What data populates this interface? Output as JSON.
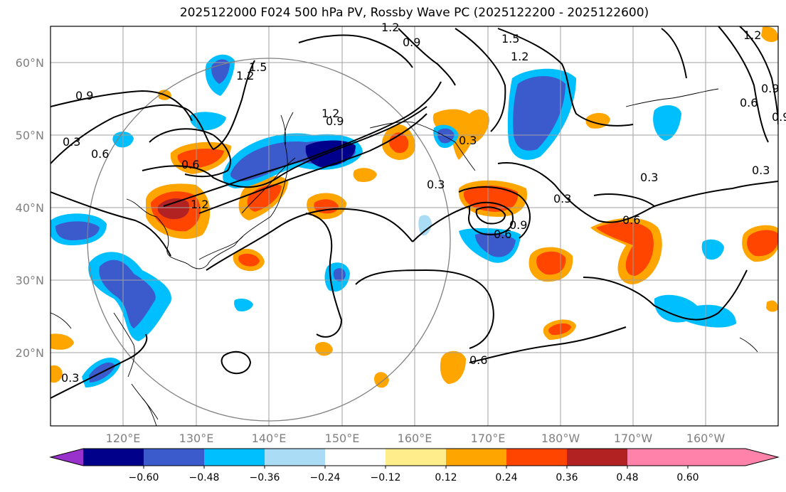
{
  "title": "2025122000 F024 500 hPa PV, Rossby Wave PC (2025122200 - 2025122600)",
  "map": {
    "lon_ticks": [
      "120°E",
      "130°E",
      "140°E",
      "150°E",
      "160°E",
      "170°E",
      "180°W",
      "170°W",
      "160°W"
    ],
    "lat_ticks": [
      "60°N",
      "50°N",
      "40°N",
      "30°N",
      "20°N"
    ]
  },
  "contour_labels": [
    "1.2",
    "0.9",
    "1.5",
    "1.2",
    "1.5",
    "1.2",
    "0.9",
    "1.2",
    "0.9",
    "0.9",
    "0.3",
    "0.6",
    "0.6",
    "1.2",
    "0.3",
    "0.3",
    "0.3",
    "0.6",
    "0.9",
    "0.6",
    "0.3",
    "0.3",
    "0.6",
    "1.2",
    "0.6",
    "0.9"
  ],
  "colorbar": {
    "colors": [
      "#9932cc",
      "#00008b",
      "#3b5bcd",
      "#00bfff",
      "#aadcf5",
      "#ffffff",
      "#ffec8b",
      "#ffa500",
      "#ff4500",
      "#b22222",
      "#ff82ab"
    ],
    "tick_labels": [
      "−0.60",
      "−0.48",
      "−0.36",
      "−0.24",
      "−0.12",
      "0.12",
      "0.24",
      "0.36",
      "0.48",
      "0.60"
    ]
  },
  "colors": {
    "frame": "#000000",
    "grid": "#a0a0a0",
    "contour": "#000000",
    "coast": "#000000"
  }
}
